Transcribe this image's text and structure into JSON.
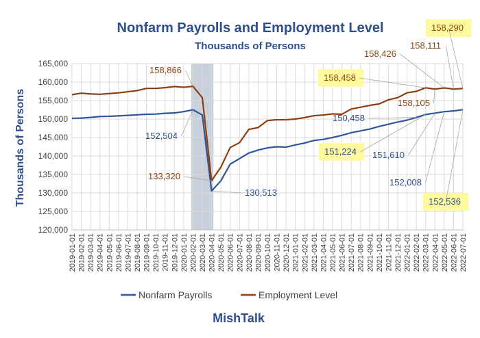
{
  "chart_data": {
    "type": "line",
    "title": "Nonfarm Payrolls and Employment Level",
    "subtitle": "Thousands of Persons",
    "ylabel": "Thousands of  Persons",
    "xlabel": "",
    "ylim": [
      120000,
      165000
    ],
    "yticks": [
      "120,000",
      "125,000",
      "130,000",
      "135,000",
      "140,000",
      "145,000",
      "150,000",
      "155,000",
      "160,000",
      "165,000"
    ],
    "x": [
      "2019-01-01",
      "2019-02-01",
      "2019-03-01",
      "2019-04-01",
      "2019-05-01",
      "2019-06-01",
      "2019-07-01",
      "2019-08-01",
      "2019-09-01",
      "2019-10-01",
      "2019-11-01",
      "2019-12-01",
      "2020-01-01",
      "2020-02-01",
      "2020-03-01",
      "2020-04-01",
      "2020-05-01",
      "2020-06-01",
      "2020-07-01",
      "2020-08-01",
      "2020-09-01",
      "2020-10-01",
      "2020-11-01",
      "2020-12-01",
      "2021-01-01",
      "2021-02-01",
      "2021-03-01",
      "2021-04-01",
      "2021-05-01",
      "2021-06-01",
      "2021-07-01",
      "2021-08-01",
      "2021-09-01",
      "2021-10-01",
      "2021-11-01",
      "2021-12-01",
      "2022-01-01",
      "2022-02-01",
      "2022-03-01",
      "2022-04-01",
      "2022-05-01",
      "2022-06-01",
      "2022-07-01"
    ],
    "recession_shading": [
      "2020-02-01",
      "2020-04-01"
    ],
    "grid": true,
    "legend_position": "bottom",
    "series": [
      {
        "name": "Nonfarm Payrolls",
        "color": "#2e5597",
        "values": [
          150200,
          150250,
          150450,
          150700,
          150750,
          150850,
          151000,
          151150,
          151300,
          151350,
          151550,
          151650,
          152000,
          152504,
          151100,
          130513,
          133300,
          137800,
          139300,
          140800,
          141600,
          142200,
          142500,
          142400,
          143000,
          143500,
          144200,
          144500,
          145000,
          145600,
          146300,
          146800,
          147300,
          148000,
          148600,
          149200,
          149700,
          150458,
          151224,
          151610,
          152008,
          152200,
          152536
        ]
      },
      {
        "name": "Employment Level",
        "color": "#8b3e0f",
        "values": [
          156600,
          157000,
          156800,
          156700,
          156900,
          157100,
          157400,
          157700,
          158300,
          158300,
          158500,
          158800,
          158600,
          158866,
          155800,
          133320,
          137000,
          142300,
          143600,
          147200,
          147700,
          149600,
          149800,
          149800,
          150000,
          150400,
          150900,
          151100,
          151400,
          151300,
          152700,
          153200,
          153700,
          154100,
          155200,
          155800,
          157100,
          157500,
          158458,
          158105,
          158426,
          158111,
          158290
        ]
      }
    ],
    "annotations": [
      {
        "text": "158,866",
        "series": 1,
        "index": 13,
        "highlight": false
      },
      {
        "text": "152,504",
        "series": 0,
        "index": 13,
        "highlight": false
      },
      {
        "text": "133,320",
        "series": 1,
        "index": 15,
        "highlight": false
      },
      {
        "text": "130,513",
        "series": 0,
        "index": 15,
        "highlight": false
      },
      {
        "text": "158,458",
        "series": 1,
        "index": 38,
        "highlight": true
      },
      {
        "text": "158,105",
        "series": 1,
        "index": 39,
        "highlight": false
      },
      {
        "text": "158,426",
        "series": 1,
        "index": 40,
        "highlight": false
      },
      {
        "text": "158,111",
        "series": 1,
        "index": 41,
        "highlight": false
      },
      {
        "text": "158,290",
        "series": 1,
        "index": 42,
        "highlight": true
      },
      {
        "text": "150,458",
        "series": 0,
        "index": 37,
        "highlight": false
      },
      {
        "text": "151,224",
        "series": 0,
        "index": 38,
        "highlight": true
      },
      {
        "text": "151,610",
        "series": 0,
        "index": 39,
        "highlight": false
      },
      {
        "text": "152,008",
        "series": 0,
        "index": 40,
        "highlight": false
      },
      {
        "text": "152,536",
        "series": 0,
        "index": 42,
        "highlight": true
      }
    ]
  },
  "footer": {
    "brand": "MishTalk"
  }
}
